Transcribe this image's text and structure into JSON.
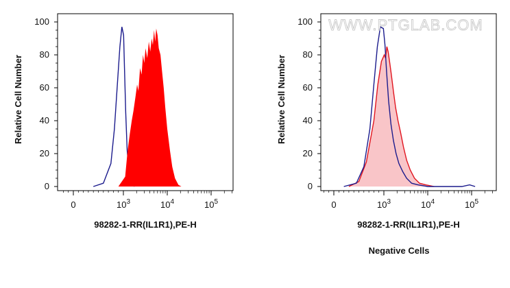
{
  "chart_data": [
    {
      "type": "area",
      "panel": "left",
      "xlabel": "98282-1-RR(IL1R1),PE-H",
      "ylabel": "Relative Cell Number",
      "x_scale": "biexponential",
      "x_ticks": [
        {
          "value": 0,
          "base": "0",
          "exp": ""
        },
        {
          "value": 1000,
          "base": "10",
          "exp": "3"
        },
        {
          "value": 10000,
          "base": "10",
          "exp": "4"
        },
        {
          "value": 100000,
          "base": "10",
          "exp": "5"
        }
      ],
      "y_ticks": [
        "0",
        "20",
        "40",
        "60",
        "80",
        "100"
      ],
      "ylim": [
        0,
        100
      ],
      "series": [
        {
          "style": "outline",
          "color": "#1a1a8c",
          "points": [
            [
              400,
              0
            ],
            [
              600,
              2
            ],
            [
              750,
              14
            ],
            [
              820,
              35
            ],
            [
              880,
              62
            ],
            [
              930,
              85
            ],
            [
              970,
              97
            ],
            [
              1010,
              92
            ],
            [
              1060,
              72
            ],
            [
              1130,
              45
            ],
            [
              1220,
              22
            ],
            [
              1350,
              8
            ],
            [
              1550,
              2
            ],
            [
              1800,
              0
            ]
          ]
        },
        {
          "style": "filled",
          "color": "#ff0000",
          "points": [
            [
              900,
              0
            ],
            [
              1100,
              6
            ],
            [
              1250,
              22
            ],
            [
              1400,
              32
            ],
            [
              1550,
              40
            ],
            [
              1700,
              46
            ],
            [
              1900,
              55
            ],
            [
              2050,
              62
            ],
            [
              2200,
              58
            ],
            [
              2400,
              72
            ],
            [
              2600,
              68
            ],
            [
              2800,
              80
            ],
            [
              3000,
              75
            ],
            [
              3200,
              84
            ],
            [
              3500,
              78
            ],
            [
              3800,
              88
            ],
            [
              4100,
              82
            ],
            [
              4400,
              90
            ],
            [
              4700,
              86
            ],
            [
              5000,
              95
            ],
            [
              5300,
              88
            ],
            [
              5600,
              96
            ],
            [
              6000,
              92
            ],
            [
              6400,
              84
            ],
            [
              7000,
              80
            ],
            [
              7600,
              70
            ],
            [
              8300,
              60
            ],
            [
              9000,
              48
            ],
            [
              10000,
              35
            ],
            [
              11500,
              22
            ],
            [
              13000,
              12
            ],
            [
              15000,
              5
            ],
            [
              18000,
              1
            ],
            [
              21000,
              0
            ]
          ]
        }
      ]
    },
    {
      "type": "area",
      "panel": "right",
      "xlabel": "98282-1-RR(IL1R1),PE-H",
      "ylabel": "Relative Cell Number",
      "x_scale": "biexponential",
      "x_ticks": [
        {
          "value": 0,
          "base": "0",
          "exp": ""
        },
        {
          "value": 1000,
          "base": "10",
          "exp": "3"
        },
        {
          "value": 10000,
          "base": "10",
          "exp": "4"
        },
        {
          "value": 100000,
          "base": "10",
          "exp": "5"
        }
      ],
      "y_ticks": [
        "0",
        "20",
        "40",
        "60",
        "80",
        "100"
      ],
      "ylim": [
        0,
        100
      ],
      "series": [
        {
          "style": "filled-outline",
          "color": "#e0141e",
          "fill": "#f9c5c8",
          "points": [
            [
              300,
              0
            ],
            [
              500,
              3
            ],
            [
              650,
              15
            ],
            [
              800,
              40
            ],
            [
              880,
              62
            ],
            [
              950,
              76
            ],
            [
              1020,
              80
            ],
            [
              1090,
              78
            ],
            [
              1170,
              85
            ],
            [
              1250,
              82
            ],
            [
              1350,
              76
            ],
            [
              1480,
              68
            ],
            [
              1650,
              58
            ],
            [
              1850,
              48
            ],
            [
              2100,
              40
            ],
            [
              2400,
              33
            ],
            [
              2800,
              24
            ],
            [
              3300,
              16
            ],
            [
              4000,
              10
            ],
            [
              5000,
              5
            ],
            [
              6500,
              2
            ],
            [
              9000,
              1
            ],
            [
              14000,
              0
            ]
          ]
        },
        {
          "style": "outline",
          "color": "#1a1a8c",
          "points": [
            [
              200,
              0
            ],
            [
              450,
              2
            ],
            [
              600,
              12
            ],
            [
              720,
              35
            ],
            [
              800,
              62
            ],
            [
              870,
              85
            ],
            [
              930,
              97
            ],
            [
              990,
              96
            ],
            [
              1060,
              86
            ],
            [
              1150,
              70
            ],
            [
              1280,
              52
            ],
            [
              1450,
              38
            ],
            [
              1650,
              28
            ],
            [
              1900,
              20
            ],
            [
              2200,
              14
            ],
            [
              2700,
              9
            ],
            [
              3300,
              5
            ],
            [
              4300,
              2
            ],
            [
              6000,
              1
            ],
            [
              10000,
              0
            ],
            [
              60000,
              0
            ],
            [
              90000,
              1
            ],
            [
              120000,
              0
            ]
          ]
        }
      ]
    }
  ],
  "footer_caption": "Negative Cells",
  "watermark": "WWW.PTGLAB.COM"
}
